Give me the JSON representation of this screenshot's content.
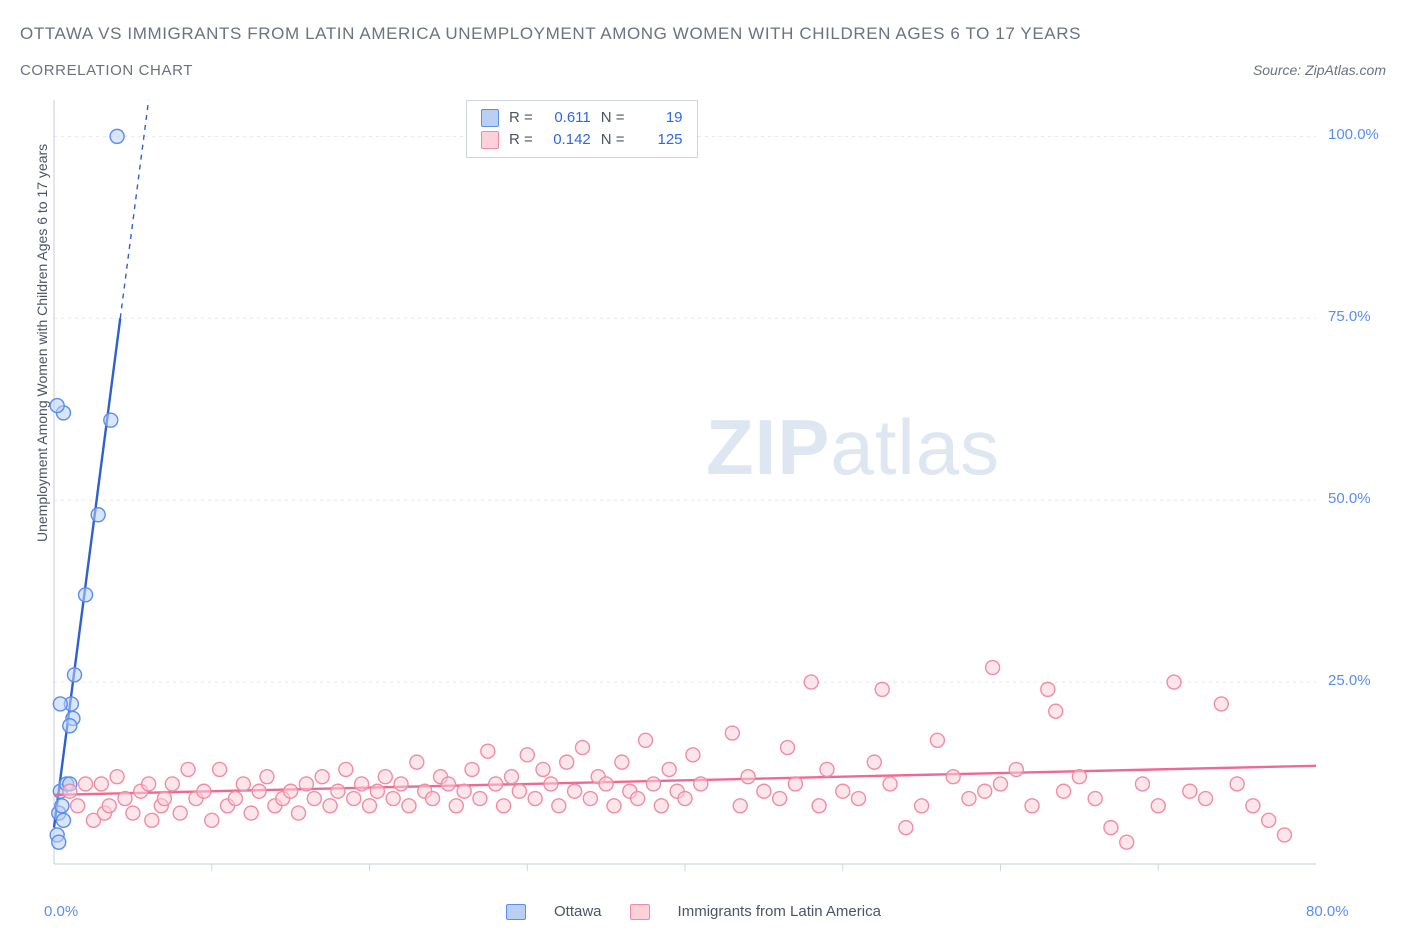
{
  "title_main": "OTTAWA VS IMMIGRANTS FROM LATIN AMERICA UNEMPLOYMENT AMONG WOMEN WITH CHILDREN AGES 6 TO 17 YEARS",
  "subtitle": "CORRELATION CHART",
  "source_label": "Source: ZipAtlas.com",
  "yaxis_label": "Unemployment Among Women with Children Ages 6 to 17 years",
  "watermark_zip": "ZIP",
  "watermark_atlas": "atlas",
  "chart": {
    "type": "scatter",
    "background_color": "#ffffff",
    "grid_color": "#e5e7eb",
    "axis_color": "#cfd6df",
    "text_color": "#4b5563",
    "tick_color": "#5b8def",
    "xlim": [
      0,
      80
    ],
    "ylim": [
      0,
      105
    ],
    "x_ticks": [
      0,
      80
    ],
    "x_tick_labels": [
      "0.0%",
      "80.0%"
    ],
    "x_minor_ticks": [
      10,
      20,
      30,
      40,
      50,
      60,
      70
    ],
    "y_ticks": [
      25,
      50,
      75,
      100
    ],
    "y_tick_labels": [
      "25.0%",
      "50.0%",
      "75.0%",
      "100.0%"
    ],
    "marker_radius": 7,
    "marker_stroke_width": 1.4,
    "line_width": 2.4,
    "series": [
      {
        "key": "ottawa",
        "label": "Ottawa",
        "fill": "#b9d0f3",
        "stroke": "#5b8def",
        "line_color": "#2f5fd0",
        "R": "0.611",
        "N": "19",
        "trend": {
          "x1": 0,
          "y1": 5,
          "x2": 6,
          "y2": 105,
          "dashed_from_x": 4.2
        },
        "points": [
          [
            0.2,
            4
          ],
          [
            0.3,
            7
          ],
          [
            0.4,
            10
          ],
          [
            0.5,
            8
          ],
          [
            0.6,
            6
          ],
          [
            0.8,
            11
          ],
          [
            1.0,
            11
          ],
          [
            1.2,
            20
          ],
          [
            1.1,
            22
          ],
          [
            0.4,
            22
          ],
          [
            1.3,
            26
          ],
          [
            1.0,
            19
          ],
          [
            2.0,
            37
          ],
          [
            2.8,
            48
          ],
          [
            3.6,
            61
          ],
          [
            0.6,
            62
          ],
          [
            0.2,
            63
          ],
          [
            4.0,
            100
          ],
          [
            0.3,
            3
          ]
        ]
      },
      {
        "key": "latin",
        "label": "Immigrants from Latin America",
        "fill": "#fcd1da",
        "stroke": "#f08ca4",
        "line_color": "#ef6a93",
        "R": "0.142",
        "N": "125",
        "trend": {
          "x1": 0,
          "y1": 9.5,
          "x2": 80,
          "y2": 13.5
        },
        "points": [
          [
            1,
            10
          ],
          [
            1.5,
            8
          ],
          [
            2,
            11
          ],
          [
            2.5,
            6
          ],
          [
            3,
            11
          ],
          [
            3.2,
            7
          ],
          [
            3.5,
            8
          ],
          [
            4,
            12
          ],
          [
            4.5,
            9
          ],
          [
            5,
            7
          ],
          [
            5.5,
            10
          ],
          [
            6,
            11
          ],
          [
            6.2,
            6
          ],
          [
            6.8,
            8
          ],
          [
            7,
            9
          ],
          [
            7.5,
            11
          ],
          [
            8,
            7
          ],
          [
            8.5,
            13
          ],
          [
            9,
            9
          ],
          [
            9.5,
            10
          ],
          [
            10,
            6
          ],
          [
            10.5,
            13
          ],
          [
            11,
            8
          ],
          [
            11.5,
            9
          ],
          [
            12,
            11
          ],
          [
            12.5,
            7
          ],
          [
            13,
            10
          ],
          [
            13.5,
            12
          ],
          [
            14,
            8
          ],
          [
            14.5,
            9
          ],
          [
            15,
            10
          ],
          [
            15.5,
            7
          ],
          [
            16,
            11
          ],
          [
            16.5,
            9
          ],
          [
            17,
            12
          ],
          [
            17.5,
            8
          ],
          [
            18,
            10
          ],
          [
            18.5,
            13
          ],
          [
            19,
            9
          ],
          [
            19.5,
            11
          ],
          [
            20,
            8
          ],
          [
            20.5,
            10
          ],
          [
            21,
            12
          ],
          [
            21.5,
            9
          ],
          [
            22,
            11
          ],
          [
            22.5,
            8
          ],
          [
            23,
            14
          ],
          [
            23.5,
            10
          ],
          [
            24,
            9
          ],
          [
            24.5,
            12
          ],
          [
            25,
            11
          ],
          [
            25.5,
            8
          ],
          [
            26,
            10
          ],
          [
            26.5,
            13
          ],
          [
            27,
            9
          ],
          [
            27.5,
            15.5
          ],
          [
            28,
            11
          ],
          [
            28.5,
            8
          ],
          [
            29,
            12
          ],
          [
            29.5,
            10
          ],
          [
            30,
            15
          ],
          [
            30.5,
            9
          ],
          [
            31,
            13
          ],
          [
            31.5,
            11
          ],
          [
            32,
            8
          ],
          [
            32.5,
            14
          ],
          [
            33,
            10
          ],
          [
            33.5,
            16
          ],
          [
            34,
            9
          ],
          [
            34.5,
            12
          ],
          [
            35,
            11
          ],
          [
            35.5,
            8
          ],
          [
            36,
            14
          ],
          [
            36.5,
            10
          ],
          [
            37,
            9
          ],
          [
            37.5,
            17
          ],
          [
            38,
            11
          ],
          [
            38.5,
            8
          ],
          [
            39,
            13
          ],
          [
            39.5,
            10
          ],
          [
            40,
            9
          ],
          [
            40.5,
            15
          ],
          [
            41,
            11
          ],
          [
            43,
            18
          ],
          [
            43.5,
            8
          ],
          [
            44,
            12
          ],
          [
            45,
            10
          ],
          [
            46,
            9
          ],
          [
            46.5,
            16
          ],
          [
            47,
            11
          ],
          [
            48,
            25
          ],
          [
            48.5,
            8
          ],
          [
            49,
            13
          ],
          [
            50,
            10
          ],
          [
            51,
            9
          ],
          [
            52,
            14
          ],
          [
            52.5,
            24
          ],
          [
            53,
            11
          ],
          [
            54,
            5
          ],
          [
            55,
            8
          ],
          [
            56,
            17
          ],
          [
            57,
            12
          ],
          [
            58,
            9
          ],
          [
            59,
            10
          ],
          [
            59.5,
            27
          ],
          [
            60,
            11
          ],
          [
            61,
            13
          ],
          [
            62,
            8
          ],
          [
            63,
            24
          ],
          [
            63.5,
            21
          ],
          [
            64,
            10
          ],
          [
            65,
            12
          ],
          [
            66,
            9
          ],
          [
            67,
            5
          ],
          [
            68,
            3
          ],
          [
            69,
            11
          ],
          [
            70,
            8
          ],
          [
            71,
            25
          ],
          [
            72,
            10
          ],
          [
            73,
            9
          ],
          [
            74,
            22
          ],
          [
            75,
            11
          ],
          [
            76,
            8
          ],
          [
            77,
            6
          ],
          [
            78,
            4
          ]
        ]
      }
    ]
  },
  "legend": {
    "series1": "Ottawa",
    "series2": "Immigrants from Latin America"
  },
  "stats_labels": {
    "R": "R =",
    "N": "N ="
  }
}
